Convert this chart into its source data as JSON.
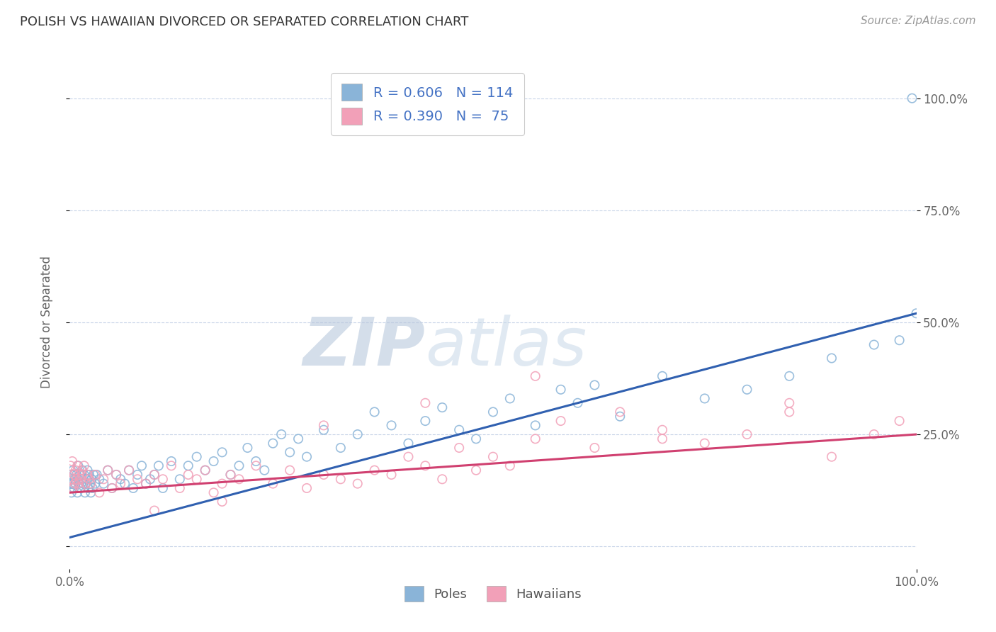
{
  "title": "POLISH VS HAWAIIAN DIVORCED OR SEPARATED CORRELATION CHART",
  "source_text": "Source: ZipAtlas.com",
  "ylabel": "Divorced or Separated",
  "poles_color": "#8ab4d8",
  "hawaiians_color": "#f2a0b8",
  "trend_poles_color": "#3060b0",
  "trend_hawaiians_color": "#d04070",
  "watermark_zip": "ZIP",
  "watermark_atlas": "atlas",
  "watermark_color": "#c8d4e8",
  "bg_color": "#ffffff",
  "grid_color": "#c8d4e8",
  "xlim": [
    0,
    100
  ],
  "ylim": [
    -5,
    105
  ],
  "poles_scatter_x": [
    0.1,
    0.2,
    0.2,
    0.3,
    0.3,
    0.4,
    0.4,
    0.5,
    0.5,
    0.6,
    0.7,
    0.8,
    0.9,
    1.0,
    1.0,
    1.1,
    1.2,
    1.3,
    1.4,
    1.5,
    1.6,
    1.7,
    1.8,
    1.9,
    2.0,
    2.1,
    2.2,
    2.3,
    2.4,
    2.5,
    2.6,
    2.7,
    2.8,
    3.0,
    3.2,
    3.5,
    4.0,
    4.5,
    5.0,
    5.5,
    6.0,
    6.5,
    7.0,
    7.5,
    8.0,
    8.5,
    9.0,
    9.5,
    10.0,
    10.5,
    11.0,
    12.0,
    13.0,
    14.0,
    15.0,
    16.0,
    17.0,
    18.0,
    19.0,
    20.0,
    21.0,
    22.0,
    23.0,
    24.0,
    25.0,
    26.0,
    27.0,
    28.0,
    30.0,
    32.0,
    34.0,
    36.0,
    38.0,
    40.0,
    42.0,
    44.0,
    46.0,
    48.0,
    50.0,
    52.0,
    55.0,
    58.0,
    60.0,
    62.0,
    65.0,
    70.0,
    75.0,
    80.0,
    85.0,
    90.0,
    95.0,
    98.0,
    100.0,
    99.5
  ],
  "poles_scatter_y": [
    14,
    12,
    16,
    15,
    13,
    17,
    14,
    16,
    13,
    15,
    14,
    16,
    12,
    15,
    18,
    14,
    16,
    13,
    15,
    17,
    14,
    16,
    12,
    14,
    15,
    17,
    13,
    16,
    14,
    12,
    15,
    13,
    16,
    14,
    16,
    15,
    14,
    17,
    13,
    16,
    15,
    14,
    17,
    13,
    16,
    18,
    14,
    15,
    16,
    18,
    13,
    19,
    15,
    18,
    20,
    17,
    19,
    21,
    16,
    18,
    22,
    19,
    17,
    23,
    25,
    21,
    24,
    20,
    26,
    22,
    25,
    30,
    27,
    23,
    28,
    31,
    26,
    24,
    30,
    33,
    27,
    35,
    32,
    36,
    29,
    38,
    33,
    35,
    38,
    42,
    45,
    46,
    52,
    100
  ],
  "hawaiians_scatter_x": [
    0.1,
    0.2,
    0.3,
    0.4,
    0.5,
    0.6,
    0.7,
    0.8,
    0.9,
    1.0,
    1.1,
    1.2,
    1.3,
    1.4,
    1.5,
    1.7,
    1.9,
    2.1,
    2.3,
    2.5,
    3.0,
    3.5,
    4.0,
    4.5,
    5.0,
    5.5,
    6.0,
    7.0,
    8.0,
    9.0,
    10.0,
    11.0,
    12.0,
    13.0,
    14.0,
    15.0,
    16.0,
    17.0,
    18.0,
    19.0,
    20.0,
    22.0,
    24.0,
    26.0,
    28.0,
    30.0,
    32.0,
    34.0,
    36.0,
    38.0,
    40.0,
    42.0,
    44.0,
    46.0,
    48.0,
    50.0,
    52.0,
    55.0,
    58.0,
    62.0,
    65.0,
    70.0,
    75.0,
    80.0,
    85.0,
    90.0,
    95.0,
    98.0,
    85.0,
    70.0,
    55.0,
    42.0,
    30.0,
    18.0,
    10.0
  ],
  "hawaiians_scatter_y": [
    18,
    15,
    19,
    13,
    16,
    14,
    17,
    15,
    18,
    14,
    16,
    13,
    15,
    17,
    16,
    18,
    14,
    16,
    15,
    14,
    16,
    12,
    15,
    17,
    13,
    16,
    14,
    17,
    15,
    14,
    16,
    15,
    18,
    13,
    16,
    15,
    17,
    12,
    14,
    16,
    15,
    18,
    14,
    17,
    13,
    16,
    15,
    14,
    17,
    16,
    20,
    18,
    15,
    22,
    17,
    20,
    18,
    24,
    28,
    22,
    30,
    26,
    23,
    25,
    30,
    20,
    25,
    28,
    32,
    24,
    38,
    32,
    27,
    10,
    8
  ],
  "trend_poles_start_y": 2.0,
  "trend_poles_end_y": 52.0,
  "trend_hawaiians_start_y": 12.0,
  "trend_hawaiians_end_y": 25.0
}
